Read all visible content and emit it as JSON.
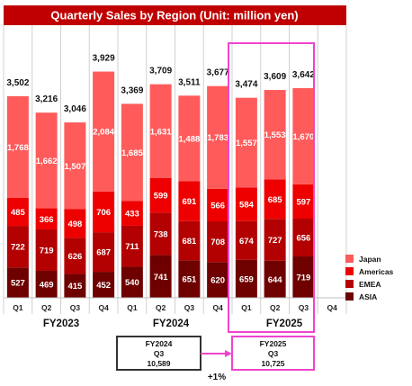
{
  "chart_data": {
    "type": "bar",
    "stacked": true,
    "title": "Quarterly Sales by Region (Unit: million yen)",
    "colors": {
      "title_bg": "#c00000",
      "Japan": "#ff5b5b",
      "Americas": "#ee0000",
      "EMEA": "#b30000",
      "ASIA": "#6e0000",
      "highlight": "#ee44cc",
      "compare_box": "#333333"
    },
    "groups": [
      {
        "label": "FY2023",
        "quarters": [
          "Q1",
          "Q2",
          "Q3",
          "Q4"
        ]
      },
      {
        "label": "FY2024",
        "quarters": [
          "Q1",
          "Q2",
          "Q3",
          "Q4"
        ]
      },
      {
        "label": "FY2025",
        "quarters": [
          "Q1",
          "Q2",
          "Q3",
          "Q4"
        ]
      }
    ],
    "series": [
      {
        "name": "ASIA",
        "values": [
          527,
          469,
          415,
          452,
          540,
          741,
          651,
          620,
          659,
          644,
          719,
          null
        ]
      },
      {
        "name": "EMEA",
        "values": [
          722,
          719,
          626,
          687,
          711,
          738,
          681,
          708,
          674,
          727,
          656,
          null
        ]
      },
      {
        "name": "Americas",
        "values": [
          485,
          366,
          498,
          706,
          433,
          599,
          691,
          566,
          584,
          685,
          597,
          null
        ]
      },
      {
        "name": "Japan",
        "values": [
          1768,
          1662,
          1507,
          2084,
          1685,
          1631,
          1488,
          1783,
          1557,
          1553,
          1670,
          null
        ]
      }
    ],
    "totals": [
      "3,502",
      "3,216",
      "3,046",
      "3,929",
      "3,369",
      "3,709",
      "3,511",
      "3,677",
      "3,474",
      "3,609",
      "3,642",
      ""
    ],
    "segment_labels": {
      "ASIA": [
        "527",
        "469",
        "415",
        "452",
        "540",
        "741",
        "651",
        "620",
        "659",
        "644",
        "719",
        ""
      ],
      "EMEA": [
        "722",
        "719",
        "626",
        "687",
        "711",
        "738",
        "681",
        "708",
        "674",
        "727",
        "656",
        ""
      ],
      "Americas": [
        "485",
        "366",
        "498",
        "706",
        "433",
        "599",
        "691",
        "566",
        "584",
        "685",
        "597",
        ""
      ],
      "Japan": [
        "1,768",
        "1,662",
        "1,507",
        "2,084",
        "1,685",
        "1,631",
        "1,488",
        "1,783",
        "1,557",
        "1,553",
        "1,670",
        ""
      ]
    },
    "legend": {
      "placement": "right",
      "entries": [
        "Japan",
        "Americas",
        "EMEA",
        "ASIA"
      ]
    },
    "ylim": [
      0,
      4300
    ],
    "highlight_group": "FY2025",
    "comparison": {
      "left": {
        "fy": "FY2024",
        "quarter": "Q3",
        "value": "10,589"
      },
      "right": {
        "fy": "FY2025",
        "quarter": "Q3",
        "value": "10,725"
      },
      "growth": "+1%"
    }
  }
}
